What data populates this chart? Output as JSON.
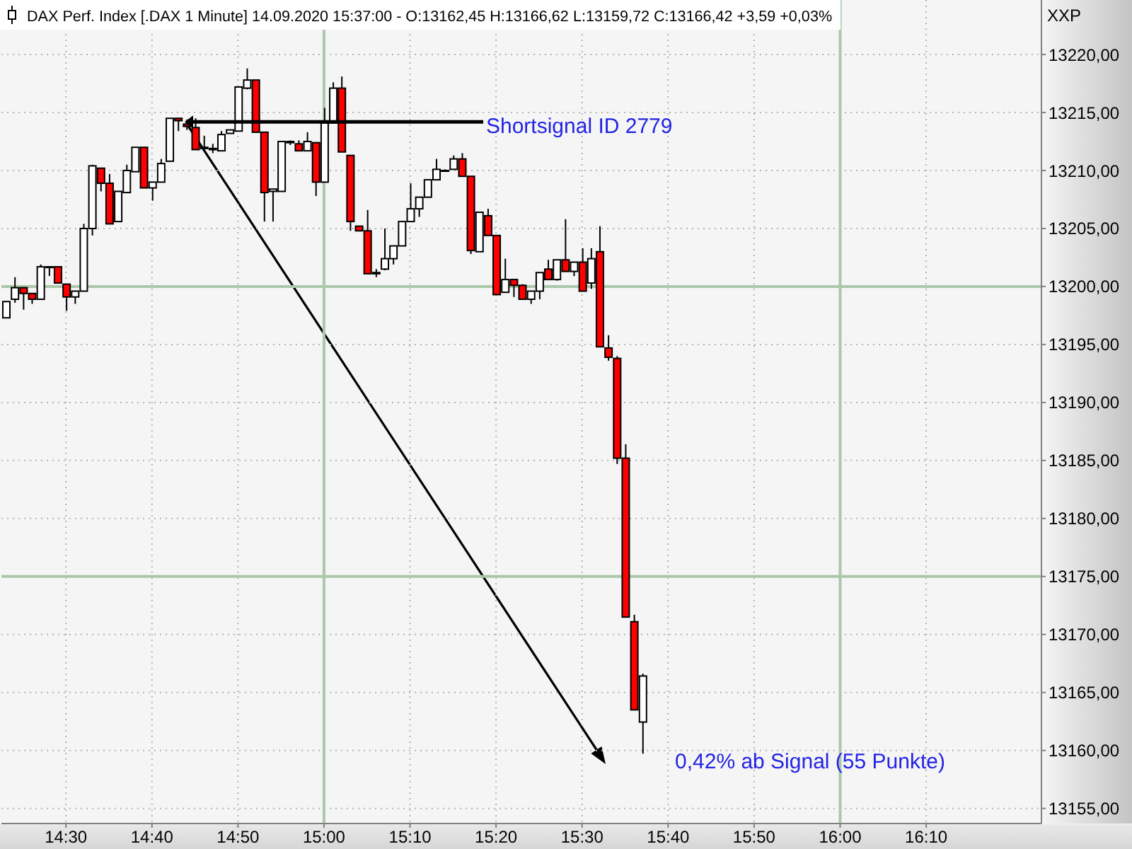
{
  "chart_data": {
    "type": "candlestick",
    "title": "DAX Perf. Index [.DAX 1 Minute] 14.09.2020 15:37:00 - O:13162,45 H:13166,62 L:13159,72 C:13166,42 +3,59 +0,03%",
    "ylabel": "XXP",
    "x": [
      14.3833,
      14.4,
      14.4167,
      14.4333,
      14.45,
      14.4667,
      14.4833,
      14.5,
      14.5167,
      14.5333,
      14.55,
      14.5667,
      14.5833,
      14.6,
      14.6167,
      14.6333,
      14.65,
      14.6667,
      14.6833,
      14.7,
      14.7167,
      14.7333,
      14.75,
      14.7667,
      14.7833,
      14.8,
      14.8167,
      14.8333,
      14.85,
      14.8667,
      14.8833,
      14.9,
      14.9167,
      14.9333,
      14.95,
      14.9667,
      14.9833,
      15,
      15.0167,
      15.0333,
      15.05,
      15.0667,
      15.0833,
      15.1,
      15.1167,
      15.1333,
      15.15,
      15.1667,
      15.1833,
      15.2,
      15.2167,
      15.2333,
      15.25,
      15.2667,
      15.2833,
      15.3,
      15.3167,
      15.3333,
      15.35,
      15.3667,
      15.3833,
      15.4,
      15.4167,
      15.4333,
      15.45,
      15.4667,
      15.4833,
      15.5,
      15.5167,
      15.5333,
      15.55,
      15.5667,
      15.5833,
      15.6,
      15.6167
    ],
    "ohlc": [
      [
        13197.3,
        13198.7,
        13197.3,
        13198.7
      ],
      [
        13198.9,
        13200.8,
        13198.6,
        13199.9
      ],
      [
        13199.9,
        13199.9,
        13198.0,
        13199.4
      ],
      [
        13199.4,
        13199.4,
        13198.5,
        13198.9
      ],
      [
        13198.9,
        13201.9,
        13198.9,
        13201.7
      ],
      [
        13201.7,
        13201.7,
        13200.9,
        13201.7
      ],
      [
        13201.7,
        13201.7,
        13200.3,
        13200.3
      ],
      [
        13200.2,
        13200.2,
        13197.9,
        13199.1
      ],
      [
        13199.1,
        13199.6,
        13198.5,
        13199.6
      ],
      [
        13199.6,
        13205.4,
        13199.6,
        13205.0
      ],
      [
        13205.0,
        13210.5,
        13204.4,
        13210.4
      ],
      [
        13210.2,
        13210.2,
        13208.2,
        13208.9
      ],
      [
        13208.9,
        13209.7,
        13205.4,
        13205.4
      ],
      [
        13205.6,
        13208.2,
        13205.6,
        13208.2
      ],
      [
        13208.1,
        13210.5,
        13208.1,
        13210.0
      ],
      [
        13209.9,
        13212.0,
        13209.9,
        13212.0
      ],
      [
        13212.0,
        13212.0,
        13208.5,
        13208.5
      ],
      [
        13208.5,
        13209.0,
        13207.4,
        13209.0
      ],
      [
        13209.0,
        13211.0,
        13209.0,
        13210.6
      ],
      [
        13210.8,
        13214.5,
        13210.8,
        13214.5
      ],
      [
        13214.5,
        13214.5,
        13213.4,
        13214.3
      ],
      [
        13214.0,
        13214.4,
        13213.5,
        13213.8
      ],
      [
        13213.7,
        13214.5,
        13211.8,
        13211.8
      ],
      [
        13211.9,
        13213.0,
        13211.8,
        13212.0
      ],
      [
        13211.9,
        13212.3,
        13211.5,
        13211.8
      ],
      [
        13211.7,
        13213.4,
        13211.7,
        13213.1
      ],
      [
        13213.2,
        13213.5,
        13213.2,
        13213.5
      ],
      [
        13213.4,
        13217.2,
        13213.4,
        13217.2
      ],
      [
        13217.1,
        13218.8,
        13217.0,
        13217.8
      ],
      [
        13217.8,
        13217.8,
        13213.3,
        13213.3
      ],
      [
        13213.3,
        13213.3,
        13205.6,
        13208.1
      ],
      [
        13208.2,
        13208.4,
        13205.6,
        13208.4
      ],
      [
        13208.2,
        13212.5,
        13208.2,
        13212.5
      ],
      [
        13212.4,
        13212.6,
        13212.2,
        13212.5
      ],
      [
        13212.3,
        13212.6,
        13211.7,
        13211.7
      ],
      [
        13211.7,
        13213.3,
        13211.7,
        13212.5
      ],
      [
        13212.4,
        13212.4,
        13207.8,
        13209.0
      ],
      [
        13209.0,
        13215.4,
        13209.0,
        13214.1
      ],
      [
        13214.1,
        13217.6,
        13214.1,
        13217.1
      ],
      [
        13217.1,
        13218.1,
        13211.6,
        13211.6
      ],
      [
        13211.3,
        13211.3,
        13204.8,
        13205.6
      ],
      [
        13205.2,
        13205.2,
        13204.8,
        13204.8
      ],
      [
        13204.8,
        13206.6,
        13201.1,
        13201.1
      ],
      [
        13201.2,
        13201.5,
        13200.8,
        13201.1
      ],
      [
        13201.5,
        13205.0,
        13201.4,
        13202.4
      ],
      [
        13202.4,
        13203.5,
        13201.9,
        13203.5
      ],
      [
        13203.5,
        13205.6,
        13203.5,
        13205.6
      ],
      [
        13205.6,
        13208.9,
        13205.6,
        13206.7
      ],
      [
        13206.7,
        13207.7,
        13206.0,
        13207.7
      ],
      [
        13207.7,
        13209.2,
        13207.7,
        13209.2
      ],
      [
        13209.2,
        13211.0,
        13209.2,
        13210.1
      ],
      [
        13210.0,
        13210.1,
        13209.9,
        13210.0
      ],
      [
        13210.1,
        13211.3,
        13210.1,
        13211.0
      ],
      [
        13211.0,
        13211.5,
        13209.5,
        13209.5
      ],
      [
        13209.5,
        13209.5,
        13202.8,
        13203.1
      ],
      [
        13203.0,
        13206.4,
        13203.0,
        13206.4
      ],
      [
        13206.1,
        13206.7,
        13204.4,
        13204.4
      ],
      [
        13204.4,
        13204.4,
        13199.3,
        13199.3
      ],
      [
        13199.5,
        13202.4,
        13199.5,
        13200.6
      ],
      [
        13200.6,
        13200.6,
        13199.1,
        13200.1
      ],
      [
        13200.1,
        13200.2,
        13198.9,
        13198.9
      ],
      [
        13198.9,
        13199.6,
        13198.5,
        13199.6
      ],
      [
        13199.6,
        13201.2,
        13198.9,
        13201.2
      ],
      [
        13201.5,
        13202.3,
        13200.6,
        13200.6
      ],
      [
        13200.6,
        13202.3,
        13200.5,
        13202.3
      ],
      [
        13202.3,
        13205.8,
        13201.3,
        13201.3
      ],
      [
        13201.3,
        13202.1,
        13200.9,
        13202.1
      ],
      [
        13202.1,
        13203.3,
        13199.6,
        13199.6
      ],
      [
        13200.3,
        13203.3,
        13199.8,
        13202.4
      ],
      [
        13203.0,
        13205.2,
        13194.8,
        13194.8
      ],
      [
        13194.7,
        13195.8,
        13193.6,
        13193.9
      ],
      [
        13193.8,
        13194.0,
        13184.7,
        13185.2
      ],
      [
        13185.2,
        13186.4,
        13171.5,
        13171.5
      ],
      [
        13171.1,
        13171.7,
        13163.5,
        13163.5
      ],
      [
        13162.45,
        13166.62,
        13159.72,
        13166.42
      ]
    ],
    "colors": [
      "#ffffff",
      "#ffffff",
      "#ff0000",
      "#ff0000",
      "#ffffff",
      "#ffffff",
      "#ff0000",
      "#ff0000",
      "#ffffff",
      "#ffffff",
      "#ffffff",
      "#ff0000",
      "#ff0000",
      "#ffffff",
      "#ffffff",
      "#ffffff",
      "#ff0000",
      "#ffffff",
      "#ffffff",
      "#ffffff",
      "#ff0000",
      "#ff0000",
      "#ff0000",
      "#ffffff",
      "#ff0000",
      "#ffffff",
      "#ffffff",
      "#ffffff",
      "#ffffff",
      "#ff0000",
      "#ff0000",
      "#ffffff",
      "#ffffff",
      "#ffffff",
      "#ff0000",
      "#ffffff",
      "#ff0000",
      "#ffffff",
      "#ffffff",
      "#ff0000",
      "#ff0000",
      "#ff0000",
      "#ff0000",
      "#ff0000",
      "#ffffff",
      "#ffffff",
      "#ffffff",
      "#ffffff",
      "#ffffff",
      "#ffffff",
      "#ffffff",
      "#ffffff",
      "#ffffff",
      "#ff0000",
      "#ff0000",
      "#ffffff",
      "#ff0000",
      "#ff0000",
      "#ffffff",
      "#ff0000",
      "#ff0000",
      "#ffffff",
      "#ffffff",
      "#ff0000",
      "#ffffff",
      "#ff0000",
      "#ffffff",
      "#ff0000",
      "#ffffff",
      "#ff0000",
      "#ff0000",
      "#ff0000",
      "#ff0000",
      "#ff0000",
      "#ffffff"
    ],
    "xlim": [
      14.375,
      16.39
    ],
    "xticks": [
      {
        "value": 14.5,
        "label": "14:30"
      },
      {
        "value": 14.6667,
        "label": "14:40"
      },
      {
        "value": 14.8333,
        "label": "14:50"
      },
      {
        "value": 15,
        "label": "15:00"
      },
      {
        "value": 15.1667,
        "label": "15:10"
      },
      {
        "value": 15.3333,
        "label": "15:20"
      },
      {
        "value": 15.5,
        "label": "15:30"
      },
      {
        "value": 15.6667,
        "label": "15:40"
      },
      {
        "value": 15.8333,
        "label": "15:50"
      },
      {
        "value": 16,
        "label": "16:00"
      },
      {
        "value": 16.1667,
        "label": "16:10"
      }
    ],
    "ylim": [
      13153.7,
      13224.7
    ],
    "yticks": [
      {
        "value": 13155,
        "label": "13155,00"
      },
      {
        "value": 13160,
        "label": "13160,00"
      },
      {
        "value": 13165,
        "label": "13165,00"
      },
      {
        "value": 13170,
        "label": "13170,00"
      },
      {
        "value": 13175,
        "label": "13175,00"
      },
      {
        "value": 13180,
        "label": "13180,00"
      },
      {
        "value": 13185,
        "label": "13185,00"
      },
      {
        "value": 13190,
        "label": "13190,00"
      },
      {
        "value": 13195,
        "label": "13195,00"
      },
      {
        "value": 13200,
        "label": "13200,00"
      },
      {
        "value": 13205,
        "label": "13205,00"
      },
      {
        "value": 13210,
        "label": "13210,00"
      },
      {
        "value": 13215,
        "label": "13215,00"
      },
      {
        "value": 13220,
        "label": "13220,00"
      }
    ],
    "grid": true,
    "annotations": [
      {
        "text": "Shortsignal ID 2779",
        "x": 14.73,
        "y": 13214.2
      },
      "0,42% ab Signal (55 Punkte)"
    ]
  }
}
